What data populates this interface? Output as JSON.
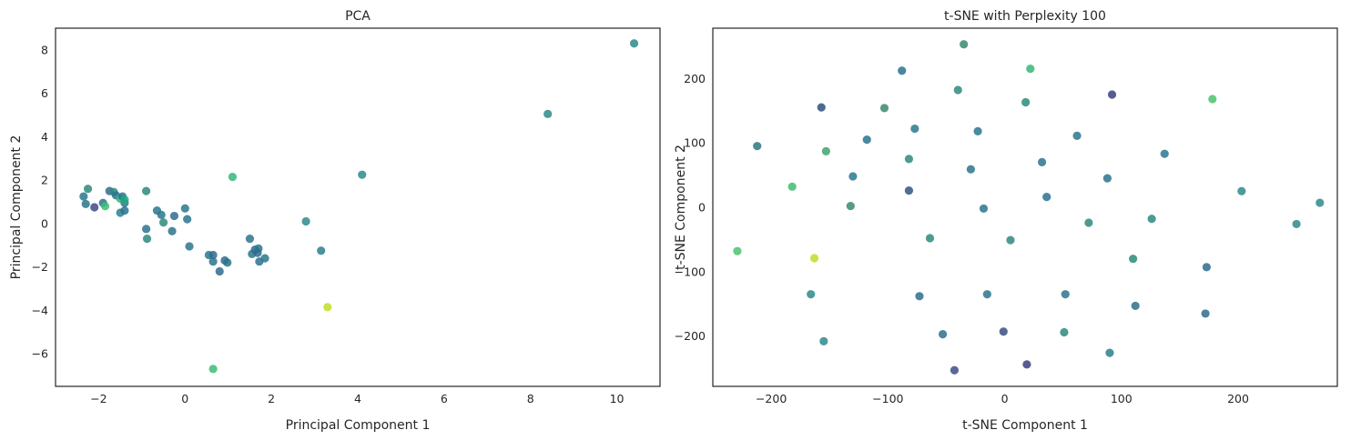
{
  "chart_data": [
    {
      "type": "scatter",
      "title": "PCA",
      "xlabel": "Principal Component 1",
      "ylabel": "Principal Component 2",
      "xlim": [
        -3.0,
        11.0
      ],
      "ylim": [
        -7.5,
        9.0
      ],
      "xticks": [
        -2,
        0,
        2,
        4,
        6,
        8,
        10
      ],
      "yticks": [
        -6,
        -4,
        -2,
        0,
        2,
        4,
        6,
        8
      ],
      "grid": false,
      "colormap": "viridis",
      "points": [
        {
          "x": 10.4,
          "y": 8.3,
          "c": "#2e8a8a"
        },
        {
          "x": 8.4,
          "y": 5.05,
          "c": "#2f898b"
        },
        {
          "x": 4.1,
          "y": 2.25,
          "c": "#2e8a8a"
        },
        {
          "x": 2.8,
          "y": 0.1,
          "c": "#2f898b"
        },
        {
          "x": 3.15,
          "y": -1.25,
          "c": "#2c7f8e"
        },
        {
          "x": 3.3,
          "y": -3.85,
          "c": "#bddf26"
        },
        {
          "x": 1.1,
          "y": 2.15,
          "c": "#35b779"
        },
        {
          "x": 0.65,
          "y": -6.7,
          "c": "#3dbc74"
        },
        {
          "x": -2.35,
          "y": 1.25,
          "c": "#2a788e"
        },
        {
          "x": -2.25,
          "y": 1.6,
          "c": "#2e8a7c"
        },
        {
          "x": -2.3,
          "y": 0.9,
          "c": "#2b748e"
        },
        {
          "x": -2.1,
          "y": 0.75,
          "c": "#3e4a89"
        },
        {
          "x": -1.9,
          "y": 0.95,
          "c": "#2c728e"
        },
        {
          "x": -1.85,
          "y": 0.8,
          "c": "#3fbc73"
        },
        {
          "x": -1.75,
          "y": 1.5,
          "c": "#2f6c8e"
        },
        {
          "x": -1.65,
          "y": 1.45,
          "c": "#2e8a7c"
        },
        {
          "x": -1.6,
          "y": 1.3,
          "c": "#2b748e"
        },
        {
          "x": -1.5,
          "y": 1.15,
          "c": "#35b779"
        },
        {
          "x": -1.45,
          "y": 1.25,
          "c": "#2b758e"
        },
        {
          "x": -1.4,
          "y": 0.95,
          "c": "#2a788e"
        },
        {
          "x": -1.4,
          "y": 1.1,
          "c": "#22a884"
        },
        {
          "x": -1.5,
          "y": 0.5,
          "c": "#26828e"
        },
        {
          "x": -1.4,
          "y": 0.6,
          "c": "#2c728e"
        },
        {
          "x": -0.9,
          "y": 1.5,
          "c": "#2e8a7c"
        },
        {
          "x": -0.9,
          "y": -0.25,
          "c": "#2c728e"
        },
        {
          "x": -0.88,
          "y": -0.7,
          "c": "#2e8a7c"
        },
        {
          "x": -0.65,
          "y": 0.6,
          "c": "#2b758e"
        },
        {
          "x": -0.55,
          "y": 0.4,
          "c": "#2a788e"
        },
        {
          "x": -0.5,
          "y": 0.05,
          "c": "#2e8a7c"
        },
        {
          "x": -0.3,
          "y": -0.35,
          "c": "#2b748e"
        },
        {
          "x": -0.25,
          "y": 0.35,
          "c": "#2f6c8e"
        },
        {
          "x": -0.0,
          "y": 0.7,
          "c": "#2a788e"
        },
        {
          "x": 0.05,
          "y": 0.2,
          "c": "#2b758e"
        },
        {
          "x": 0.1,
          "y": -1.05,
          "c": "#2b758e"
        },
        {
          "x": 0.55,
          "y": -1.45,
          "c": "#2a788e"
        },
        {
          "x": 0.65,
          "y": -1.45,
          "c": "#2f6c8e"
        },
        {
          "x": 0.65,
          "y": -1.75,
          "c": "#2b748e"
        },
        {
          "x": 0.8,
          "y": -2.2,
          "c": "#2f6c8e"
        },
        {
          "x": 0.92,
          "y": -1.7,
          "c": "#2f6c8e"
        },
        {
          "x": 0.98,
          "y": -1.8,
          "c": "#2b748e"
        },
        {
          "x": 1.5,
          "y": -0.7,
          "c": "#2b748e"
        },
        {
          "x": 1.55,
          "y": -1.4,
          "c": "#2a788e"
        },
        {
          "x": 1.62,
          "y": -1.2,
          "c": "#2f6c8e"
        },
        {
          "x": 1.7,
          "y": -1.15,
          "c": "#2a788e"
        },
        {
          "x": 1.68,
          "y": -1.35,
          "c": "#2f6c8e"
        },
        {
          "x": 1.72,
          "y": -1.75,
          "c": "#2c728e"
        },
        {
          "x": 1.85,
          "y": -1.6,
          "c": "#2a788e"
        }
      ]
    },
    {
      "type": "scatter",
      "title": "t-SNE with Perplexity 100",
      "xlabel": "t-SNE Component 1",
      "ylabel": "t-SNE Component 2",
      "xlim": [
        -250,
        285
      ],
      "ylim": [
        -278,
        278
      ],
      "xticks": [
        -200,
        -100,
        0,
        100,
        200
      ],
      "yticks": [
        -200,
        -100,
        0,
        100,
        200
      ],
      "grid": false,
      "colormap": "viridis",
      "points": [
        {
          "x": -35,
          "y": 253,
          "c": "#3a8a6a"
        },
        {
          "x": 22,
          "y": 215,
          "c": "#35b779"
        },
        {
          "x": -88,
          "y": 212,
          "c": "#2c728e"
        },
        {
          "x": -40,
          "y": 182,
          "c": "#2e8a7c"
        },
        {
          "x": 92,
          "y": 175,
          "c": "#3b3f7f"
        },
        {
          "x": 178,
          "y": 168,
          "c": "#4cc26c"
        },
        {
          "x": -157,
          "y": 155,
          "c": "#30507f"
        },
        {
          "x": -103,
          "y": 154,
          "c": "#3a8a6a"
        },
        {
          "x": 18,
          "y": 163,
          "c": "#2b8a7c"
        },
        {
          "x": -77,
          "y": 122,
          "c": "#2a788e"
        },
        {
          "x": -23,
          "y": 118,
          "c": "#2b748e"
        },
        {
          "x": 62,
          "y": 111,
          "c": "#2b758e"
        },
        {
          "x": -118,
          "y": 105,
          "c": "#2c728e"
        },
        {
          "x": -212,
          "y": 95,
          "c": "#2e7582"
        },
        {
          "x": -153,
          "y": 87,
          "c": "#3fa36f"
        },
        {
          "x": 137,
          "y": 83,
          "c": "#2a788e"
        },
        {
          "x": -82,
          "y": 75,
          "c": "#2e8a7c"
        },
        {
          "x": 32,
          "y": 70,
          "c": "#2b748e"
        },
        {
          "x": -29,
          "y": 59,
          "c": "#2b748e"
        },
        {
          "x": -130,
          "y": 48,
          "c": "#2a788e"
        },
        {
          "x": 88,
          "y": 45,
          "c": "#2c728e"
        },
        {
          "x": -182,
          "y": 32,
          "c": "#3fbc73"
        },
        {
          "x": -82,
          "y": 26,
          "c": "#2f567f"
        },
        {
          "x": 203,
          "y": 25,
          "c": "#2e8a8a"
        },
        {
          "x": 36,
          "y": 16,
          "c": "#2c728e"
        },
        {
          "x": 270,
          "y": 7,
          "c": "#2e8a8a"
        },
        {
          "x": -132,
          "y": 2,
          "c": "#3a8a6a"
        },
        {
          "x": -18,
          "y": -2,
          "c": "#2b748e"
        },
        {
          "x": 126,
          "y": -18,
          "c": "#2e8a7c"
        },
        {
          "x": 72,
          "y": -24,
          "c": "#2e8a7c"
        },
        {
          "x": 250,
          "y": -26,
          "c": "#2e8a8a"
        },
        {
          "x": -64,
          "y": -48,
          "c": "#2e8a7c"
        },
        {
          "x": 5,
          "y": -51,
          "c": "#2e8a7c"
        },
        {
          "x": -229,
          "y": -68,
          "c": "#4cc26c"
        },
        {
          "x": -163,
          "y": -79,
          "c": "#bddf26"
        },
        {
          "x": 110,
          "y": -80,
          "c": "#2b8a7c"
        },
        {
          "x": 173,
          "y": -93,
          "c": "#2c6c8e"
        },
        {
          "x": -166,
          "y": -135,
          "c": "#2e8a8a"
        },
        {
          "x": -73,
          "y": -138,
          "c": "#2f6c8e"
        },
        {
          "x": -15,
          "y": -135,
          "c": "#2b748e"
        },
        {
          "x": 52,
          "y": -135,
          "c": "#2b748e"
        },
        {
          "x": 112,
          "y": -153,
          "c": "#2f6c8e"
        },
        {
          "x": 172,
          "y": -165,
          "c": "#2f6c8e"
        },
        {
          "x": -53,
          "y": -197,
          "c": "#2c728e"
        },
        {
          "x": -1,
          "y": -193,
          "c": "#3b4f83"
        },
        {
          "x": 51,
          "y": -194,
          "c": "#2b8a7c"
        },
        {
          "x": -155,
          "y": -208,
          "c": "#2e8a8a"
        },
        {
          "x": 90,
          "y": -226,
          "c": "#2c7f8e"
        },
        {
          "x": -43,
          "y": -253,
          "c": "#3b4f83"
        },
        {
          "x": 19,
          "y": -244,
          "c": "#3b3f7f"
        }
      ]
    }
  ]
}
